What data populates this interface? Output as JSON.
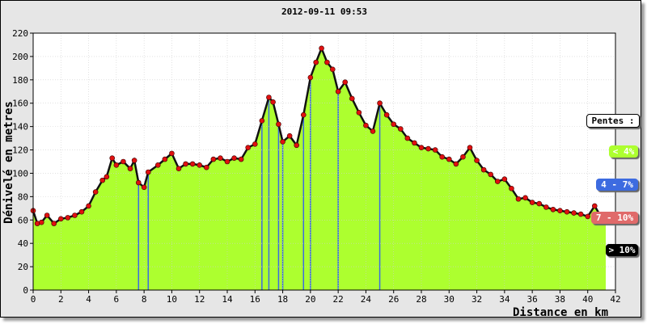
{
  "chart_data": {
    "type": "area",
    "title": "2012-09-11 09:53",
    "xlabel": "Distance en km",
    "ylabel": "Dénivelé en metres",
    "xlim": [
      0,
      42
    ],
    "ylim": [
      0,
      220
    ],
    "xticks": [
      "0",
      "2",
      "4",
      "6",
      "8",
      "10",
      "12",
      "14",
      "16",
      "18",
      "20",
      "22",
      "24",
      "26",
      "28",
      "30",
      "32",
      "34",
      "36",
      "38",
      "40",
      "42"
    ],
    "yticks": [
      "0",
      "20",
      "40",
      "60",
      "80",
      "100",
      "120",
      "140",
      "160",
      "180",
      "200",
      "220"
    ],
    "grid": true,
    "legend": {
      "title": "Pentes :",
      "placement": "right",
      "items": [
        {
          "label": "< 4%",
          "color": "#adff2f",
          "text_color": "#ffffff"
        },
        {
          "label": "4 - 7%",
          "color": "#3d6be0",
          "text_color": "#ffffff"
        },
        {
          "label": "7 - 10%",
          "color": "#e06a6a",
          "text_color": "#ffffff"
        },
        {
          "label": "> 10%",
          "color": "#000000",
          "text_color": "#ffffff"
        }
      ]
    },
    "colors": {
      "fill": "#adff2f",
      "steep": "#3d6be0",
      "very_steep": "#e06a6a",
      "extreme": "#000000",
      "marker": "#e01010"
    },
    "x": [
      0,
      0.3,
      0.6,
      1.0,
      1.5,
      2.0,
      2.5,
      3.0,
      3.5,
      4.0,
      4.5,
      5.0,
      5.3,
      5.7,
      6.0,
      6.5,
      7.0,
      7.3,
      7.6,
      8.0,
      8.3,
      9.0,
      9.5,
      10.0,
      10.5,
      11.0,
      11.5,
      12.0,
      12.5,
      13.0,
      13.5,
      14.0,
      14.5,
      15.0,
      15.5,
      16.0,
      16.5,
      17.0,
      17.3,
      17.7,
      18.0,
      18.5,
      19.0,
      19.5,
      20.0,
      20.4,
      20.8,
      21.2,
      21.6,
      22.0,
      22.5,
      23.0,
      23.5,
      24.0,
      24.5,
      25.0,
      25.5,
      26.0,
      26.5,
      27.0,
      27.5,
      28.0,
      28.5,
      29.0,
      29.5,
      30.0,
      30.5,
      31.0,
      31.5,
      32.0,
      32.5,
      33.0,
      33.5,
      34.0,
      34.5,
      35.0,
      35.5,
      36.0,
      36.5,
      37.0,
      37.5,
      38.0,
      38.5,
      39.0,
      39.5,
      40.0,
      40.5,
      41.0,
      41.3
    ],
    "y": [
      68,
      57,
      58,
      64,
      57,
      61,
      62,
      64,
      67,
      72,
      84,
      94,
      97,
      113,
      107,
      110,
      104,
      111,
      92,
      88,
      101,
      107,
      112,
      117,
      104,
      108,
      108,
      107,
      105,
      112,
      113,
      110,
      113,
      112,
      122,
      125,
      145,
      165,
      161,
      142,
      127,
      132,
      124,
      150,
      182,
      195,
      207,
      195,
      189,
      170,
      178,
      164,
      152,
      141,
      136,
      160,
      150,
      142,
      138,
      130,
      126,
      122,
      121,
      120,
      114,
      112,
      108,
      114,
      122,
      111,
      103,
      99,
      93,
      95,
      87,
      78,
      79,
      75,
      74,
      71,
      69,
      68,
      67,
      66,
      65,
      63,
      72,
      62,
      63
    ]
  }
}
